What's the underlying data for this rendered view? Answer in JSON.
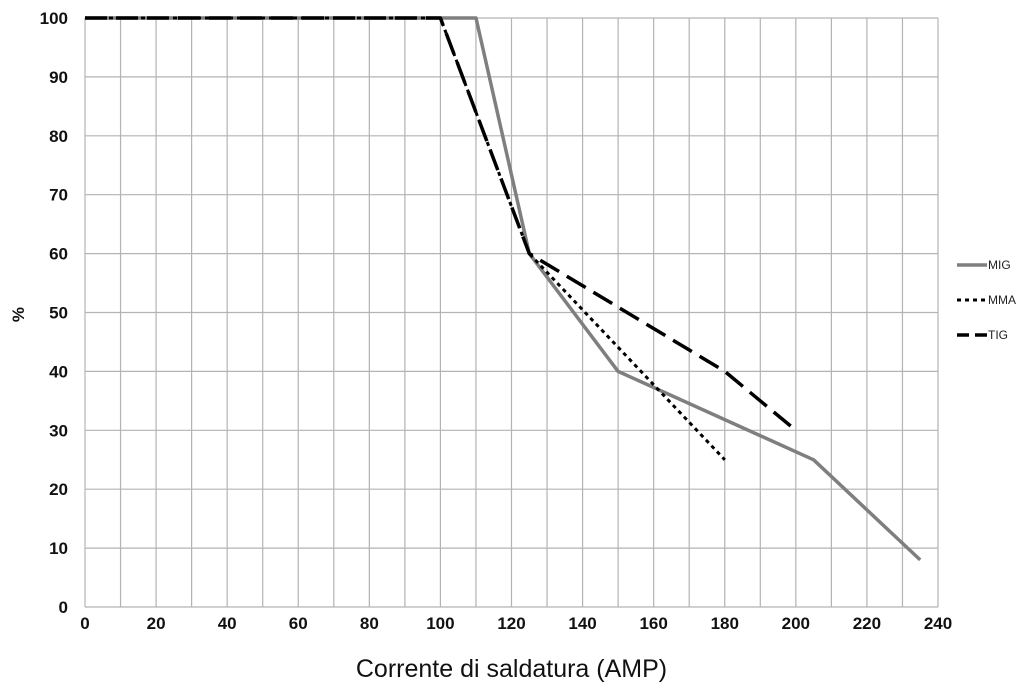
{
  "chart_data": {
    "type": "line",
    "xlabel": "Corrente di saldatura (AMP)",
    "ylabel": "%",
    "xlim": [
      0,
      240
    ],
    "ylim": [
      0,
      100
    ],
    "x_ticks": [
      0,
      20,
      40,
      60,
      80,
      100,
      120,
      140,
      160,
      180,
      200,
      220,
      240
    ],
    "y_ticks": [
      0,
      10,
      20,
      30,
      40,
      50,
      60,
      70,
      80,
      90,
      100
    ],
    "x_grid_step": 10,
    "y_grid_step": 10,
    "grid": true,
    "legend_position": "right",
    "series": [
      {
        "name": "MIG",
        "style": "solid",
        "color": "#7f7f7f",
        "points": [
          [
            0,
            100
          ],
          [
            110,
            100
          ],
          [
            125,
            60
          ],
          [
            150,
            40
          ],
          [
            205,
            25
          ],
          [
            235,
            8
          ]
        ]
      },
      {
        "name": "MMA",
        "style": "dotted",
        "color": "#000000",
        "points": [
          [
            0,
            100
          ],
          [
            100,
            100
          ],
          [
            125,
            60
          ],
          [
            180,
            25
          ]
        ]
      },
      {
        "name": "TIG",
        "style": "dashed",
        "color": "#000000",
        "points": [
          [
            0,
            100
          ],
          [
            100,
            100
          ],
          [
            125,
            60
          ],
          [
            180,
            40
          ],
          [
            200,
            30
          ]
        ]
      }
    ]
  }
}
